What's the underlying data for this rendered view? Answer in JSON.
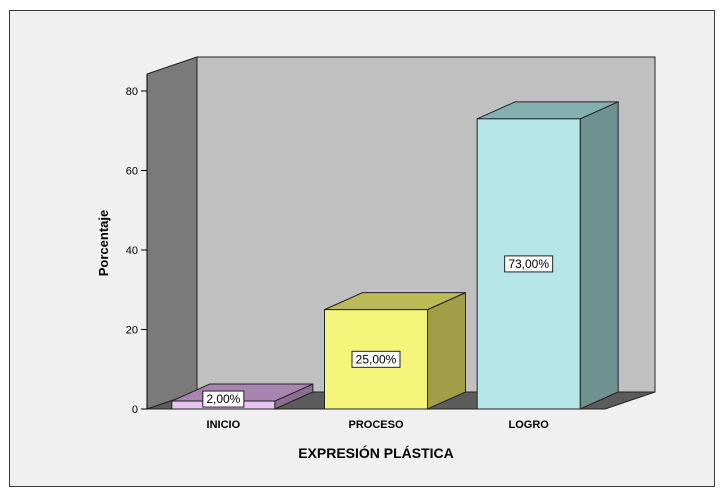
{
  "chart_data": {
    "type": "bar",
    "style": "3d",
    "categories": [
      "INICIO",
      "PROCESO",
      "LOGRO"
    ],
    "values": [
      2,
      25,
      73
    ],
    "data_labels": [
      "2,00%",
      "25,00%",
      "73,00%"
    ],
    "xlabel": "EXPRESIÓN PLÁSTICA",
    "ylabel": "Porcentaje",
    "ylim": [
      0,
      80
    ],
    "yticks": [
      0,
      20,
      40,
      60,
      80
    ],
    "grid": false,
    "legend": "none",
    "colors": {
      "bars": [
        "#e6c3f0",
        "#f6f57b",
        "#b6e6e7"
      ],
      "bar_sides": [
        "#8c6e93",
        "#a19e47",
        "#6f9190"
      ],
      "bar_tops": [
        "#a884b0",
        "#bcb957",
        "#84b0b0"
      ],
      "back_wall": "#c0c0c0",
      "side_wall": "#7a7a7a",
      "floor": "#5c5c5c",
      "frame_background": "#f0f0f0"
    }
  }
}
